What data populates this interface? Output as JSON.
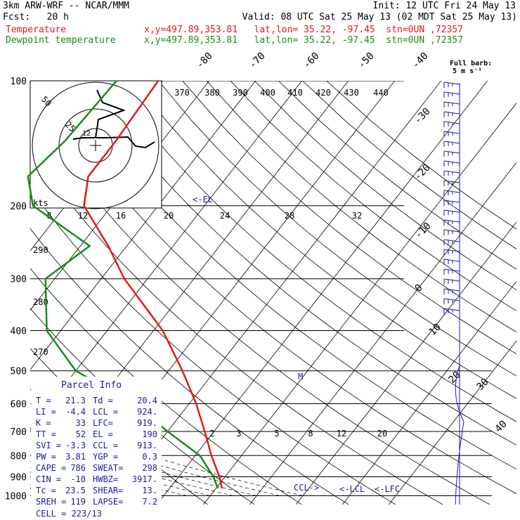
{
  "header": {
    "line1_left": "3km ARW-WRF -- NCAR/MMM",
    "line1_right": "Init: 12 UTC Fri 24 May 13",
    "line2_left": "Fcst:   20 h",
    "line2_right": "Valid: 08 UTC Sat 25 May 13 (02 MDT Sat 25 May 13)",
    "temp_label": "Temperature",
    "temp_info": "x,y=497.89,353.81   lat,lon= 35.22, -97.45  stn=0UN ,72357",
    "dew_label": "Dewpoint temperature",
    "dew_info": "x,y=497.89,353.81   lat,lon= 35.22, -97.45  stn=0UN ,72357"
  },
  "colors": {
    "temperature": "#e21a1a",
    "dewpoint": "#1a8a1a",
    "wind": "#1a1aa8",
    "hodo": "#000000"
  },
  "chart_data": {
    "type": "line",
    "title": "Skew-T log-P diagram",
    "pressure_levels": [
      100,
      200,
      300,
      400,
      500,
      600,
      700,
      800,
      900,
      1000
    ],
    "isotherm_labels": [
      "-80",
      "-70",
      "-60",
      "-50",
      "-40",
      "-30",
      "-20",
      "-10",
      "0",
      "10",
      "20",
      "30",
      "40"
    ],
    "theta_e_labels": [
      "370",
      "380",
      "390",
      "400",
      "410",
      "420",
      "430",
      "440"
    ],
    "mixing_ratio_labels": [
      "8",
      "12",
      "16",
      "20",
      "24",
      "28",
      "32"
    ],
    "lower_mixing_labels": [
      "2",
      "3",
      "5",
      "8",
      "12",
      "20"
    ],
    "dry_adiabat_labels": [
      "290",
      "280",
      "270"
    ],
    "series": [
      {
        "name": "Temperature",
        "points": [
          [
            100,
            -61
          ],
          [
            140,
            -60
          ],
          [
            170,
            -60
          ],
          [
            200,
            -56
          ],
          [
            250,
            -44
          ],
          [
            300,
            -35
          ],
          [
            400,
            -18
          ],
          [
            500,
            -7
          ],
          [
            600,
            1.5
          ],
          [
            700,
            8
          ],
          [
            800,
            13.5
          ],
          [
            900,
            18.8
          ],
          [
            960,
            21.3
          ]
        ]
      },
      {
        "name": "Dewpoint temperature",
        "points": [
          [
            100,
            -70
          ],
          [
            140,
            -71
          ],
          [
            170,
            -73
          ],
          [
            200,
            -67
          ],
          [
            250,
            -48
          ],
          [
            300,
            -52
          ],
          [
            400,
            -43
          ],
          [
            500,
            -30
          ],
          [
            600,
            -12
          ],
          [
            700,
            0
          ],
          [
            800,
            11
          ],
          [
            900,
            17.5
          ],
          [
            960,
            20.4
          ]
        ]
      }
    ],
    "wind_barbs_label": "Full barb:\n5 m s⁻¹",
    "markers": {
      "el": "<-EL",
      "lcl": "<-LCL",
      "lfc": "<-LFC",
      "ccl": "CCL->",
      "m": "M"
    },
    "kts_label": "kts",
    "hodograph_rings": [
      "50",
      "25",
      "12"
    ],
    "parcel_info": {
      "title": "Parcel Info",
      "rows": [
        [
          "T  =",
          "21.3",
          "Td =",
          "20.4"
        ],
        [
          "LI =",
          "-4.4",
          "LCL =",
          "924."
        ],
        [
          "K  =",
          "33",
          "LFC=",
          "919."
        ],
        [
          "TT =",
          "52",
          "EL  =",
          "190"
        ],
        [
          "SVI =",
          "-3.3",
          "CCL =",
          "913."
        ],
        [
          "PW =",
          "3.81",
          "YGP =",
          "0.3"
        ],
        [
          "CAPE =",
          "786",
          "SWEAT=",
          "298"
        ],
        [
          "CIN =",
          "-10",
          "HWBZ=",
          "3917."
        ],
        [
          "Tc  =",
          "23.5",
          "SHEAR=",
          "13."
        ],
        [
          "SREH =",
          "119",
          "LAPSE=",
          "7.2"
        ]
      ],
      "cell": "CELL = 223/13"
    }
  }
}
